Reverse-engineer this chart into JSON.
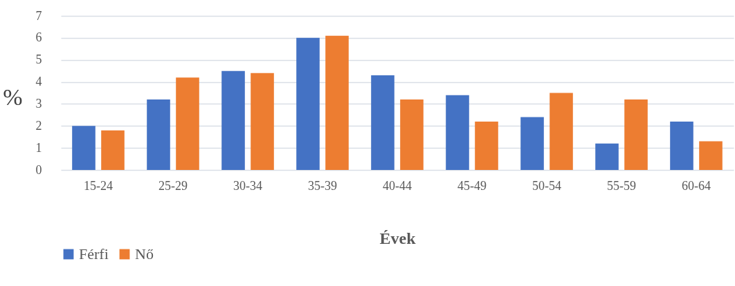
{
  "chart_data": {
    "type": "bar",
    "xlabel": "Évek",
    "ylabel": "%",
    "categories": [
      "15-24",
      "25-29",
      "30-34",
      "35-39",
      "40-44",
      "45-49",
      "50-54",
      "55-59",
      "60-64"
    ],
    "series": [
      {
        "name": "Férfi",
        "color": "#4472c4",
        "values": [
          2.0,
          3.2,
          4.5,
          6.0,
          4.3,
          3.4,
          2.4,
          1.2,
          2.2
        ]
      },
      {
        "name": "Nő",
        "color": "#ed7d31",
        "values": [
          1.8,
          4.2,
          4.4,
          6.1,
          3.2,
          2.2,
          3.5,
          3.2,
          1.3
        ]
      }
    ],
    "ylim": [
      0,
      7
    ],
    "yticks": [
      0,
      1,
      2,
      3,
      4,
      5,
      6,
      7
    ],
    "grid": "y",
    "legend": "bottom"
  }
}
